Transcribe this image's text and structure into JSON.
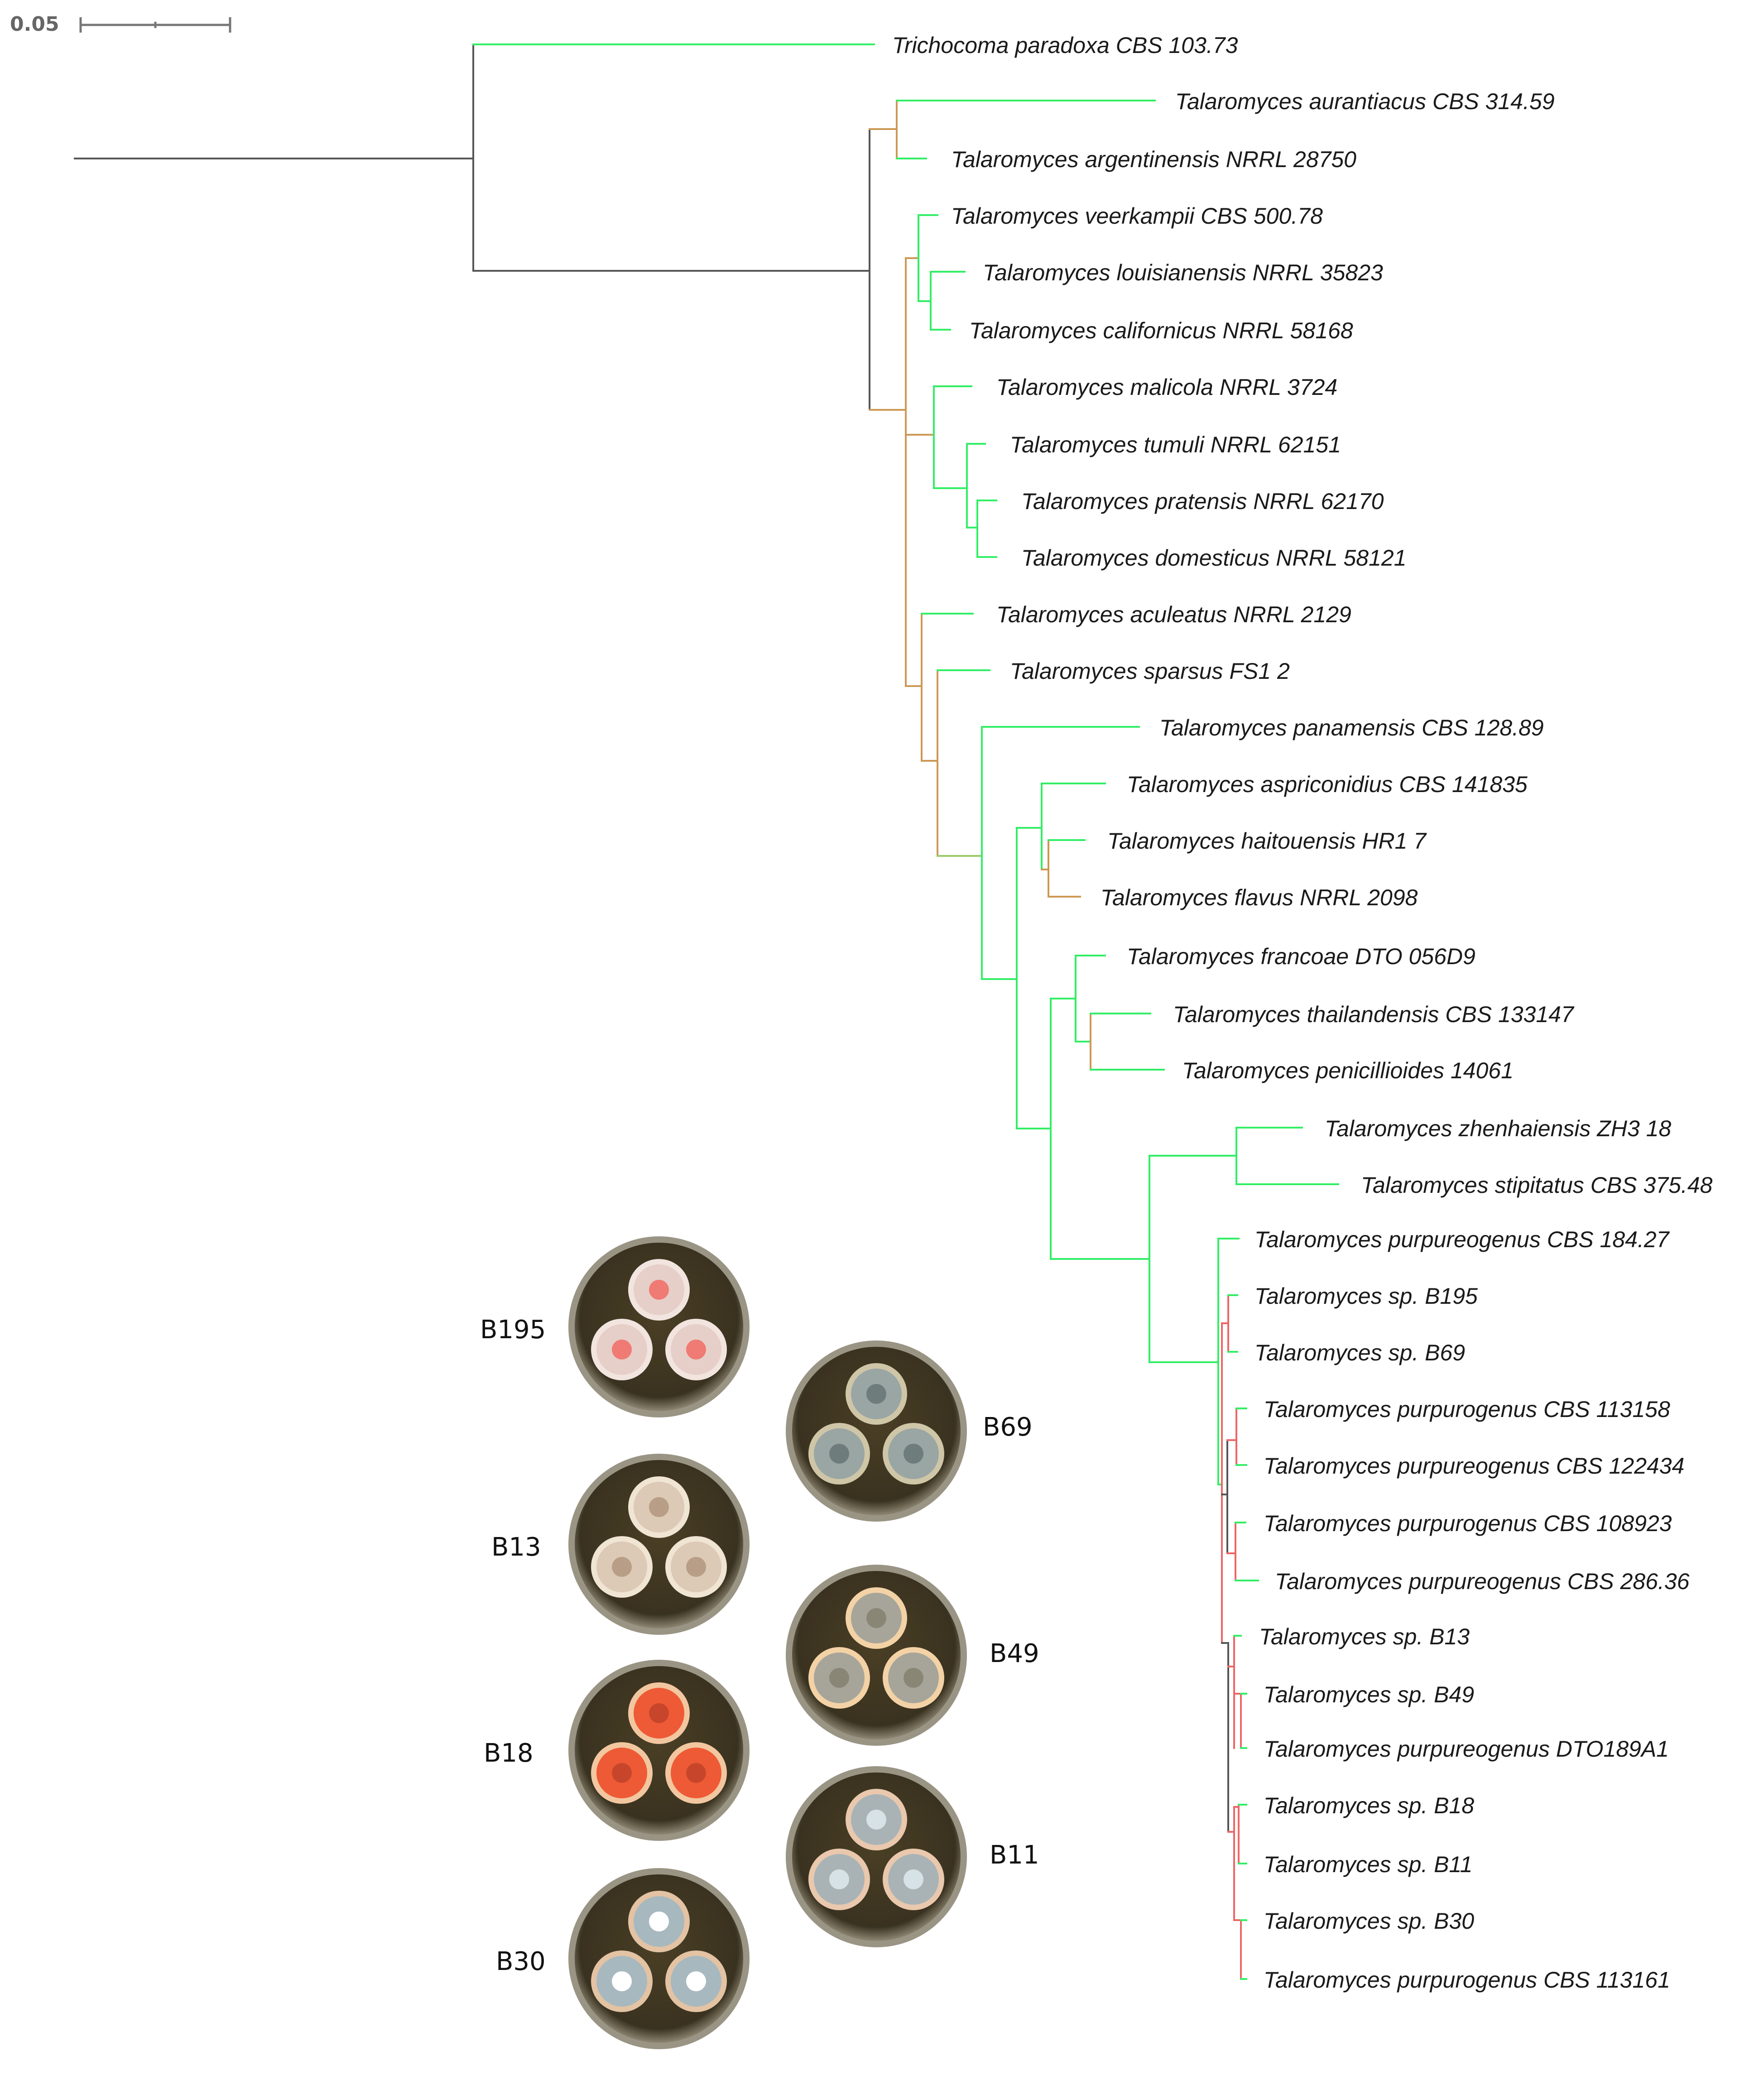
{
  "scale_bar": {
    "label": "0.05"
  },
  "colors": {
    "green": "#33ee66",
    "orange": "#cc9955",
    "red": "#ee6666",
    "gray": "#555555",
    "text": "#1a1a1a"
  },
  "taxa": [
    "Trichocoma paradoxa CBS 103.73",
    "Talaromyces aurantiacus CBS 314.59",
    "Talaromyces argentinensis NRRL 28750",
    "Talaromyces veerkampii CBS 500.78",
    "Talaromyces louisianensis NRRL 35823",
    "Talaromyces californicus NRRL 58168",
    "Talaromyces malicola NRRL 3724",
    "Talaromyces tumuli NRRL 62151",
    "Talaromyces pratensis NRRL 62170",
    "Talaromyces domesticus NRRL 58121",
    "Talaromyces aculeatus NRRL 2129",
    "Talaromyces sparsus FS1 2",
    "Talaromyces panamensis CBS 128.89",
    "Talaromyces aspriconidius CBS 141835",
    "Talaromyces haitouensis HR1 7",
    "Talaromyces flavus NRRL 2098",
    "Talaromyces francoae DTO 056D9",
    "Talaromyces thailandensis CBS 133147",
    "Talaromyces penicillioides 14061",
    "Talaromyces zhenhaiensis ZH3 18",
    "Talaromyces stipitatus CBS 375.48",
    "Talaromyces purpureogenus CBS 184.27",
    "Talaromyces sp. B195",
    "Talaromyces sp. B69",
    "Talaromyces purpurogenus CBS 113158",
    "Talaromyces purpureogenus CBS 122434",
    "Talaromyces purpurogenus CBS 108923",
    "Talaromyces purpureogenus CBS 286.36",
    "Talaromyces sp. B13",
    "Talaromyces sp. B49",
    "Talaromyces purpureogenus DTO189A1",
    "Talaromyces sp. B18",
    "Talaromyces sp. B11",
    "Talaromyces sp. B30",
    "Talaromyces purpurogenus CBS 113161"
  ],
  "plates": [
    {
      "label": "B195",
      "colony": "#e6cfc8",
      "center": "#f07a74",
      "ring": "#f2e4df"
    },
    {
      "label": "B69",
      "colony": "#9aa6a4",
      "center": "#6f7c7c",
      "ring": "#cfc6a8"
    },
    {
      "label": "B13",
      "colony": "#dcc9b6",
      "center": "#b89e86",
      "ring": "#f0e4d2"
    },
    {
      "label": "B49",
      "colony": "#a7a59a",
      "center": "#8a8676",
      "ring": "#f3d2a6"
    },
    {
      "label": "B18",
      "colony": "#ee5a35",
      "center": "#c7462b",
      "ring": "#f2c7a0"
    },
    {
      "label": "B11",
      "colony": "#a9b3b6",
      "center": "#d6e2e6",
      "ring": "#e9c8ad"
    },
    {
      "label": "B30",
      "colony": "#a7b8bf",
      "center": "#ffffff",
      "ring": "#e3c3a3"
    }
  ]
}
